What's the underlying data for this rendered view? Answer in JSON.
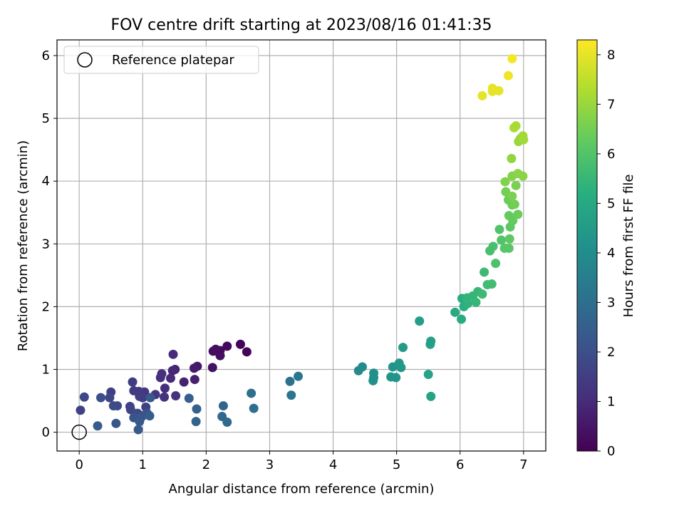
{
  "chart_data": {
    "type": "scatter",
    "title": "FOV centre drift starting at 2023/08/16 01:41:35",
    "xlabel": "Angular distance from reference (arcmin)",
    "ylabel": "Rotation from reference (arcmin)",
    "xlim": [
      -0.35,
      7.35
    ],
    "ylim": [
      -0.3,
      6.25
    ],
    "xticks": [
      "0",
      "1",
      "2",
      "3",
      "4",
      "5",
      "6",
      "7"
    ],
    "yticks": [
      "0",
      "1",
      "2",
      "3",
      "4",
      "5",
      "6"
    ],
    "grid": true,
    "legend": {
      "position": "top-left",
      "entries": [
        "Reference platepar"
      ]
    },
    "colorbar": {
      "label": "Hours from first FF file",
      "colormap": "viridis",
      "range": [
        0,
        8.3
      ],
      "ticks": [
        "0",
        "1",
        "2",
        "3",
        "4",
        "5",
        "6",
        "7",
        "8"
      ]
    },
    "reference_point": {
      "x": 0,
      "y": 0
    },
    "points": [
      {
        "x": 2.54,
        "y": 1.4,
        "h": 0.1
      },
      {
        "x": 2.64,
        "y": 1.28,
        "h": 0.1
      },
      {
        "x": 2.33,
        "y": 1.37,
        "h": 0.2
      },
      {
        "x": 2.22,
        "y": 1.3,
        "h": 0.2
      },
      {
        "x": 2.22,
        "y": 1.22,
        "h": 0.3
      },
      {
        "x": 2.11,
        "y": 1.29,
        "h": 0.3
      },
      {
        "x": 2.15,
        "y": 1.32,
        "h": 0.3
      },
      {
        "x": 2.1,
        "y": 1.03,
        "h": 0.4
      },
      {
        "x": 1.86,
        "y": 1.05,
        "h": 0.5
      },
      {
        "x": 1.81,
        "y": 1.02,
        "h": 0.6
      },
      {
        "x": 1.82,
        "y": 0.84,
        "h": 0.7
      },
      {
        "x": 1.65,
        "y": 0.8,
        "h": 0.8
      },
      {
        "x": 1.51,
        "y": 1.0,
        "h": 0.8
      },
      {
        "x": 1.47,
        "y": 0.98,
        "h": 0.9
      },
      {
        "x": 1.48,
        "y": 1.24,
        "h": 1.0
      },
      {
        "x": 1.44,
        "y": 0.86,
        "h": 1.0
      },
      {
        "x": 1.3,
        "y": 0.93,
        "h": 1.1
      },
      {
        "x": 1.28,
        "y": 0.87,
        "h": 1.1
      },
      {
        "x": 1.35,
        "y": 0.7,
        "h": 1.1
      },
      {
        "x": 1.52,
        "y": 0.58,
        "h": 1.2
      },
      {
        "x": 1.34,
        "y": 0.56,
        "h": 1.2
      },
      {
        "x": 1.2,
        "y": 0.6,
        "h": 1.3
      },
      {
        "x": 1.03,
        "y": 0.64,
        "h": 1.3
      },
      {
        "x": 0.94,
        "y": 0.65,
        "h": 1.4
      },
      {
        "x": 0.86,
        "y": 0.66,
        "h": 1.4
      },
      {
        "x": 0.84,
        "y": 0.8,
        "h": 1.5
      },
      {
        "x": 0.95,
        "y": 0.57,
        "h": 1.5
      },
      {
        "x": 1.0,
        "y": 0.55,
        "h": 1.5
      },
      {
        "x": 1.05,
        "y": 0.4,
        "h": 1.6
      },
      {
        "x": 0.8,
        "y": 0.41,
        "h": 1.6
      },
      {
        "x": 0.81,
        "y": 0.36,
        "h": 1.7
      },
      {
        "x": 0.92,
        "y": 0.3,
        "h": 1.8
      },
      {
        "x": 0.88,
        "y": 0.26,
        "h": 1.9
      },
      {
        "x": 1.0,
        "y": 0.26,
        "h": 2.0
      },
      {
        "x": 1.07,
        "y": 0.3,
        "h": 2.1
      },
      {
        "x": 0.86,
        "y": 0.23,
        "h": 2.1
      },
      {
        "x": 0.97,
        "y": 0.23,
        "h": 2.2
      },
      {
        "x": 0.95,
        "y": 0.17,
        "h": 2.3
      },
      {
        "x": 0.93,
        "y": 0.04,
        "h": 2.3
      },
      {
        "x": 1.11,
        "y": 0.26,
        "h": 2.4
      },
      {
        "x": 1.12,
        "y": 0.55,
        "h": 2.3
      },
      {
        "x": 0.08,
        "y": 0.56,
        "h": 1.8
      },
      {
        "x": 0.5,
        "y": 0.64,
        "h": 1.6
      },
      {
        "x": 0.48,
        "y": 0.55,
        "h": 1.7
      },
      {
        "x": 0.54,
        "y": 0.42,
        "h": 1.9
      },
      {
        "x": 0.6,
        "y": 0.42,
        "h": 1.9
      },
      {
        "x": 0.34,
        "y": 0.55,
        "h": 2.0
      },
      {
        "x": 0.02,
        "y": 0.35,
        "h": 1.6
      },
      {
        "x": 0.58,
        "y": 0.14,
        "h": 2.2
      },
      {
        "x": 0.29,
        "y": 0.1,
        "h": 2.4
      },
      {
        "x": 1.73,
        "y": 0.54,
        "h": 2.5
      },
      {
        "x": 1.85,
        "y": 0.37,
        "h": 2.6
      },
      {
        "x": 1.84,
        "y": 0.17,
        "h": 2.7
      },
      {
        "x": 2.27,
        "y": 0.42,
        "h": 2.7
      },
      {
        "x": 2.25,
        "y": 0.25,
        "h": 2.8
      },
      {
        "x": 2.33,
        "y": 0.16,
        "h": 2.8
      },
      {
        "x": 2.71,
        "y": 0.62,
        "h": 3.0
      },
      {
        "x": 2.75,
        "y": 0.38,
        "h": 3.0
      },
      {
        "x": 3.32,
        "y": 0.81,
        "h": 3.1
      },
      {
        "x": 3.45,
        "y": 0.89,
        "h": 3.2
      },
      {
        "x": 3.34,
        "y": 0.59,
        "h": 3.2
      },
      {
        "x": 4.4,
        "y": 0.98,
        "h": 3.9
      },
      {
        "x": 4.46,
        "y": 1.04,
        "h": 3.9
      },
      {
        "x": 4.64,
        "y": 0.94,
        "h": 4.1
      },
      {
        "x": 4.64,
        "y": 0.87,
        "h": 4.1
      },
      {
        "x": 4.63,
        "y": 0.82,
        "h": 4.2
      },
      {
        "x": 4.91,
        "y": 0.88,
        "h": 4.3
      },
      {
        "x": 4.99,
        "y": 0.87,
        "h": 4.3
      },
      {
        "x": 4.94,
        "y": 1.04,
        "h": 4.3
      },
      {
        "x": 5.04,
        "y": 1.1,
        "h": 4.4
      },
      {
        "x": 5.07,
        "y": 1.03,
        "h": 4.4
      },
      {
        "x": 5.1,
        "y": 1.35,
        "h": 4.5
      },
      {
        "x": 5.36,
        "y": 1.77,
        "h": 4.6
      },
      {
        "x": 5.54,
        "y": 1.45,
        "h": 4.7
      },
      {
        "x": 5.53,
        "y": 1.4,
        "h": 4.7
      },
      {
        "x": 5.5,
        "y": 0.92,
        "h": 4.8
      },
      {
        "x": 5.54,
        "y": 0.57,
        "h": 4.8
      },
      {
        "x": 5.92,
        "y": 1.91,
        "h": 5.0
      },
      {
        "x": 6.02,
        "y": 1.8,
        "h": 5.1
      },
      {
        "x": 6.06,
        "y": 2.0,
        "h": 5.2
      },
      {
        "x": 6.03,
        "y": 2.13,
        "h": 5.2
      },
      {
        "x": 6.12,
        "y": 2.05,
        "h": 5.3
      },
      {
        "x": 6.11,
        "y": 2.14,
        "h": 5.4
      },
      {
        "x": 6.2,
        "y": 2.17,
        "h": 5.4
      },
      {
        "x": 6.25,
        "y": 2.07,
        "h": 5.5
      },
      {
        "x": 6.28,
        "y": 2.24,
        "h": 5.5
      },
      {
        "x": 6.35,
        "y": 2.2,
        "h": 5.6
      },
      {
        "x": 6.38,
        "y": 2.55,
        "h": 5.6
      },
      {
        "x": 6.43,
        "y": 2.35,
        "h": 5.7
      },
      {
        "x": 6.5,
        "y": 2.36,
        "h": 5.7
      },
      {
        "x": 6.47,
        "y": 2.89,
        "h": 5.8
      },
      {
        "x": 6.52,
        "y": 2.96,
        "h": 5.8
      },
      {
        "x": 6.56,
        "y": 2.69,
        "h": 5.9
      },
      {
        "x": 6.65,
        "y": 3.06,
        "h": 6.0
      },
      {
        "x": 6.62,
        "y": 3.23,
        "h": 6.0
      },
      {
        "x": 6.7,
        "y": 2.93,
        "h": 6.1
      },
      {
        "x": 6.77,
        "y": 2.93,
        "h": 6.1
      },
      {
        "x": 6.78,
        "y": 3.08,
        "h": 6.2
      },
      {
        "x": 6.79,
        "y": 3.27,
        "h": 6.2
      },
      {
        "x": 6.83,
        "y": 3.37,
        "h": 6.3
      },
      {
        "x": 6.77,
        "y": 3.45,
        "h": 6.3
      },
      {
        "x": 6.91,
        "y": 3.47,
        "h": 6.4
      },
      {
        "x": 6.82,
        "y": 3.62,
        "h": 6.4
      },
      {
        "x": 6.76,
        "y": 3.7,
        "h": 6.4
      },
      {
        "x": 6.86,
        "y": 3.63,
        "h": 6.5
      },
      {
        "x": 6.72,
        "y": 3.83,
        "h": 6.5
      },
      {
        "x": 6.82,
        "y": 3.76,
        "h": 6.6
      },
      {
        "x": 6.88,
        "y": 3.93,
        "h": 6.6
      },
      {
        "x": 6.71,
        "y": 3.99,
        "h": 6.7
      },
      {
        "x": 6.82,
        "y": 4.08,
        "h": 6.7
      },
      {
        "x": 6.91,
        "y": 4.12,
        "h": 6.8
      },
      {
        "x": 6.99,
        "y": 4.08,
        "h": 6.8
      },
      {
        "x": 6.81,
        "y": 4.36,
        "h": 6.9
      },
      {
        "x": 6.92,
        "y": 4.63,
        "h": 7.0
      },
      {
        "x": 6.95,
        "y": 4.68,
        "h": 7.0
      },
      {
        "x": 7.0,
        "y": 4.66,
        "h": 7.1
      },
      {
        "x": 6.99,
        "y": 4.72,
        "h": 7.1
      },
      {
        "x": 6.88,
        "y": 4.88,
        "h": 7.2
      },
      {
        "x": 6.85,
        "y": 4.85,
        "h": 7.2
      },
      {
        "x": 6.35,
        "y": 5.36,
        "h": 8.0
      },
      {
        "x": 6.51,
        "y": 5.43,
        "h": 8.0
      },
      {
        "x": 6.51,
        "y": 5.48,
        "h": 8.0
      },
      {
        "x": 6.61,
        "y": 5.44,
        "h": 8.0
      },
      {
        "x": 6.76,
        "y": 5.68,
        "h": 8.1
      },
      {
        "x": 6.82,
        "y": 5.95,
        "h": 8.2
      }
    ]
  }
}
